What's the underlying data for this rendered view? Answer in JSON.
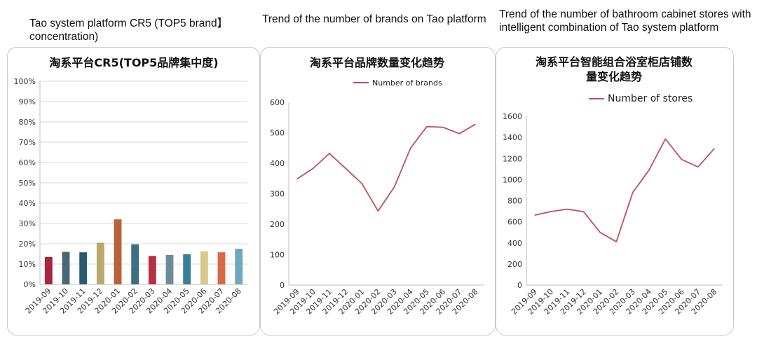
{
  "captions": {
    "left": "Tao system platform CR5 (TOP5 brand】concentration)",
    "middle": "Trend of the number of brands on Tao platform",
    "right": "Trend of the number of bathroom cabinet stores with intelligent combination of Tao system platform"
  },
  "chart_data": [
    {
      "type": "bar",
      "title": "淘系平台CR5(TOP5品牌集中度)",
      "categories": [
        "2019-09",
        "2019-10",
        "2019-11",
        "2019-12",
        "2020-01",
        "2020-02",
        "2020-03",
        "2020-04",
        "2020-05",
        "2020-06",
        "2020-07",
        "2020-08"
      ],
      "values": [
        13.5,
        16,
        15.8,
        20.5,
        32,
        19.7,
        14,
        14.5,
        14.8,
        16.3,
        15.8,
        17.5
      ],
      "bar_colors": [
        "#a8273e",
        "#4a6773",
        "#2a5a6e",
        "#b8aa6e",
        "#b8613a",
        "#3c6f82",
        "#b83040",
        "#6e8a98",
        "#3a7f9a",
        "#d9c98a",
        "#d96a45",
        "#6ea8be"
      ],
      "yticks": [
        "0%",
        "10%",
        "20%",
        "30%",
        "40%",
        "50%",
        "60%",
        "70%",
        "80%",
        "90%",
        "100%"
      ],
      "ylim": [
        0,
        100
      ],
      "grid": true
    },
    {
      "type": "line",
      "title": "淘系平台品牌数量变化趋势",
      "categories": [
        "2019-09",
        "2019-10",
        "2019-11",
        "2019-12",
        "2020-01",
        "2020-02",
        "2020-03",
        "2020-04",
        "2020-05",
        "2020-06",
        "2020-07",
        "2020-08"
      ],
      "series": [
        {
          "name": "Number of brands",
          "values": [
            348,
            383,
            432,
            383,
            333,
            243,
            322,
            450,
            520,
            518,
            497,
            528
          ],
          "color": "#c0505a"
        }
      ],
      "yticks": [
        "0",
        "100",
        "200",
        "300",
        "400",
        "500",
        "600"
      ],
      "ylim": [
        0,
        600
      ],
      "legend": "top-center",
      "grid": false
    },
    {
      "type": "line",
      "title_lines": [
        "淘系平台智能组合浴室柜店铺数",
        "量变化趋势"
      ],
      "categories": [
        "2019-09",
        "2019-10",
        "2019-11",
        "2019-12",
        "2020-01",
        "2020-02",
        "2020-03",
        "2020-04",
        "2020-05",
        "2020-06",
        "2020-07",
        "2020-08"
      ],
      "series": [
        {
          "name": "Number of stores",
          "values": [
            662,
            697,
            720,
            695,
            500,
            410,
            878,
            1090,
            1385,
            1190,
            1120,
            1295
          ],
          "color": "#c0505a"
        }
      ],
      "yticks": [
        "0",
        "200",
        "400",
        "600",
        "800",
        "1000",
        "1200",
        "1400",
        "1600"
      ],
      "ylim": [
        0,
        1600
      ],
      "legend": "top-center",
      "grid": false
    }
  ]
}
